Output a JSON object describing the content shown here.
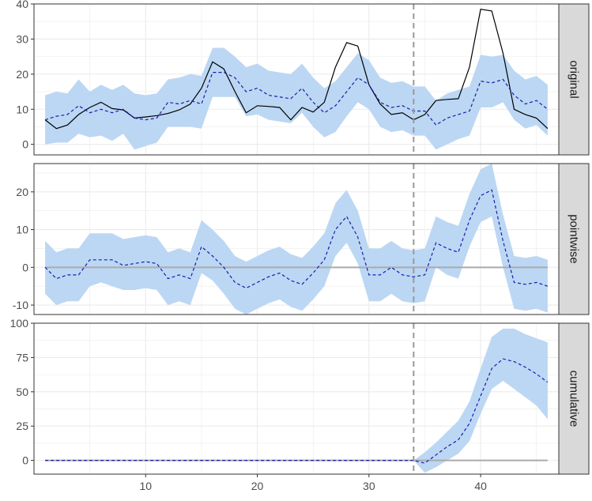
{
  "chart_data": {
    "type": "line",
    "intervention_x": 34,
    "x_ticks": [
      10,
      20,
      30,
      40
    ],
    "xlim": [
      0,
      47
    ],
    "colors": {
      "band": "#bcd7f3",
      "prediction": "#1b1bb0",
      "actual": "#000000",
      "reference": "#aaaaaa",
      "intervention": "#999999",
      "strip": "#d9d9d9",
      "grid": "#ebebeb"
    },
    "panels": [
      {
        "label": "original",
        "ylim": [
          -3,
          40
        ],
        "y_ticks": [
          0,
          10,
          20,
          30,
          40
        ],
        "x": [
          1,
          2,
          3,
          4,
          5,
          6,
          7,
          8,
          9,
          10,
          11,
          12,
          13,
          14,
          15,
          16,
          17,
          18,
          19,
          20,
          21,
          22,
          23,
          24,
          25,
          26,
          27,
          28,
          29,
          30,
          31,
          32,
          33,
          34,
          35,
          36,
          37,
          38,
          39,
          40,
          41,
          42,
          43,
          44,
          45,
          46
        ],
        "actual": [
          7,
          4.5,
          5.5,
          8.5,
          10.5,
          12,
          10.2,
          9.8,
          7.5,
          7.8,
          8.2,
          8.8,
          9.8,
          11.5,
          16,
          23.5,
          21.5,
          15,
          9,
          11,
          10.8,
          10.5,
          7,
          10.5,
          9.2,
          12,
          22,
          29,
          28,
          17,
          11.5,
          8.5,
          9,
          7,
          8.5,
          12.5,
          12.8,
          13,
          22,
          38.5,
          38,
          26,
          10,
          8.5,
          7.5,
          4.5
        ],
        "predicted": [
          7,
          8,
          8.5,
          11,
          9,
          10,
          9,
          10,
          7.5,
          7,
          7.5,
          12,
          11.5,
          12.5,
          11.5,
          20.5,
          20.5,
          19,
          15,
          16,
          14,
          13.5,
          13,
          16,
          12,
          9,
          11,
          15,
          19,
          17,
          12,
          10.5,
          11,
          9.5,
          9.5,
          5.5,
          7.5,
          8.5,
          9.5,
          18,
          17.5,
          18.5,
          14,
          11.5,
          12.5,
          10
        ],
        "lower": [
          0,
          0.5,
          0.5,
          3,
          2,
          2.5,
          1,
          3,
          -1.5,
          -0.5,
          0.5,
          5,
          5,
          5,
          4.5,
          13.5,
          13.5,
          13.5,
          8,
          8.5,
          7,
          6.5,
          6,
          9,
          5,
          2,
          3.5,
          8,
          12,
          10,
          5,
          3.5,
          4,
          2.5,
          2.5,
          -1.5,
          0,
          1.5,
          2.5,
          10.5,
          10.5,
          12,
          7,
          4.5,
          5.5,
          2.5
        ],
        "upper": [
          14,
          15,
          14.5,
          18.5,
          15,
          17,
          15.5,
          17,
          14.5,
          14,
          14.5,
          18.5,
          19,
          20,
          19.5,
          27.5,
          27.5,
          25,
          22,
          23,
          21,
          20.5,
          20,
          23,
          19,
          16,
          18,
          22,
          26,
          24,
          19,
          17.5,
          18,
          16.5,
          16.5,
          12.5,
          14.5,
          15.5,
          16.5,
          25.5,
          25,
          25.5,
          21,
          18.5,
          19.5,
          17
        ]
      },
      {
        "label": "pointwise",
        "ylim": [
          -12.5,
          27.5
        ],
        "y_ticks": [
          -10,
          0,
          10,
          20
        ],
        "x": [
          1,
          2,
          3,
          4,
          5,
          6,
          7,
          8,
          9,
          10,
          11,
          12,
          13,
          14,
          15,
          16,
          17,
          18,
          19,
          20,
          21,
          22,
          23,
          24,
          25,
          26,
          27,
          28,
          29,
          30,
          31,
          32,
          33,
          34,
          35,
          36,
          37,
          38,
          39,
          40,
          41,
          42,
          43,
          44,
          45,
          46
        ],
        "predicted": [
          0,
          -3,
          -2,
          -2,
          2,
          2,
          2,
          0.5,
          1,
          1.5,
          1,
          -3,
          -2,
          -3,
          5.5,
          3,
          0,
          -4,
          -5.5,
          -4,
          -2.5,
          -1.5,
          -3.5,
          -4.5,
          -1.5,
          2,
          10,
          13.5,
          8,
          -2,
          -2,
          0,
          -2,
          -2.5,
          -2,
          6.5,
          5,
          4,
          12.5,
          19,
          20.5,
          7,
          -4,
          -4.5,
          -4,
          -5
        ],
        "lower": [
          -7,
          -10,
          -9,
          -9,
          -5,
          -4,
          -5,
          -6,
          -6,
          -5.5,
          -6,
          -10,
          -9,
          -10,
          -1.5,
          -3.5,
          -7,
          -11,
          -12.5,
          -11,
          -9.5,
          -8.5,
          -10.5,
          -11.5,
          -8.5,
          -5,
          3,
          6.5,
          1,
          -9,
          -9,
          -7,
          -9,
          -9.5,
          -9,
          0,
          -2,
          -3,
          5.5,
          12,
          13.5,
          0,
          -11,
          -11.5,
          -11,
          -12
        ],
        "upper": [
          7,
          4,
          5,
          5,
          9,
          9,
          9,
          7.5,
          8,
          8.5,
          8,
          4,
          5,
          4,
          12.5,
          10,
          7,
          3,
          1.5,
          3,
          4.5,
          5.5,
          3.5,
          2.5,
          5.5,
          9,
          17,
          20.5,
          15,
          5,
          5,
          7,
          5,
          4.5,
          5,
          13.5,
          12,
          11,
          19.5,
          26,
          27.5,
          14,
          3,
          2.5,
          3,
          2
        ]
      },
      {
        "label": "cumulative",
        "ylim": [
          -10,
          100
        ],
        "y_ticks": [
          0,
          25,
          50,
          75,
          100
        ],
        "x": [
          1,
          2,
          3,
          4,
          5,
          6,
          7,
          8,
          9,
          10,
          11,
          12,
          13,
          14,
          15,
          16,
          17,
          18,
          19,
          20,
          21,
          22,
          23,
          24,
          25,
          26,
          27,
          28,
          29,
          30,
          31,
          32,
          33,
          34,
          35,
          36,
          37,
          38,
          39,
          40,
          41,
          42,
          43,
          44,
          45,
          46
        ],
        "predicted": [
          0,
          0,
          0,
          0,
          0,
          0,
          0,
          0,
          0,
          0,
          0,
          0,
          0,
          0,
          0,
          0,
          0,
          0,
          0,
          0,
          0,
          0,
          0,
          0,
          0,
          0,
          0,
          0,
          0,
          0,
          0,
          0,
          0,
          0,
          -2,
          4,
          10,
          15,
          27,
          47,
          67,
          74,
          72,
          68,
          63,
          57
        ],
        "lower": [
          0,
          0,
          0,
          0,
          0,
          0,
          0,
          0,
          0,
          0,
          0,
          0,
          0,
          0,
          0,
          0,
          0,
          0,
          0,
          0,
          0,
          0,
          0,
          0,
          0,
          0,
          0,
          0,
          0,
          0,
          0,
          0,
          0,
          0,
          -9,
          -5,
          0,
          5,
          14,
          34,
          52,
          58,
          52,
          46,
          40,
          30
        ],
        "upper": [
          0,
          0,
          0,
          0,
          0,
          0,
          0,
          0,
          0,
          0,
          0,
          0,
          0,
          0,
          0,
          0,
          0,
          0,
          0,
          0,
          0,
          0,
          0,
          0,
          0,
          0,
          0,
          0,
          0,
          0,
          0,
          0,
          0,
          0,
          6,
          13,
          21,
          29,
          43,
          67,
          90,
          96,
          96,
          92,
          89,
          86
        ]
      }
    ]
  }
}
